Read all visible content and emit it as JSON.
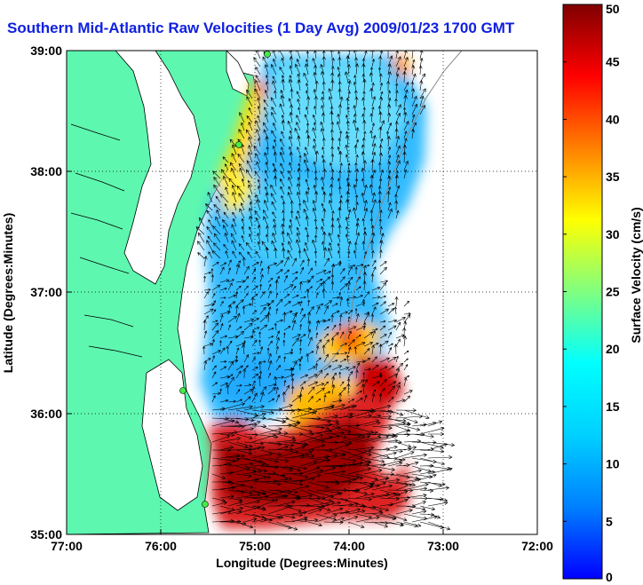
{
  "title": "Southern Mid-Atlantic Raw Velocities (1 Day Avg) 2009/01/23 1700 GMT",
  "chart_data": {
    "type": "heatmap",
    "title": "Southern Mid-Atlantic Raw Velocities (1 Day Avg) 2009/01/23 1700 GMT",
    "xlabel": "Longitude (Degrees:Minutes)",
    "ylabel": "Latitude (Degrees:Minutes)",
    "colorbar_label": "Surface Velocity (cm/s)",
    "x_ticks": [
      "77:00",
      "76:00",
      "75:00",
      "74:00",
      "73:00",
      "72:00"
    ],
    "y_ticks": [
      "39:00",
      "38:00",
      "37:00",
      "36:00",
      "35:00"
    ],
    "xlim": [
      -77,
      -72
    ],
    "ylim": [
      35,
      39
    ],
    "clim": [
      0,
      50
    ],
    "colorbar_ticks": [
      "0",
      "5",
      "10",
      "15",
      "20",
      "25",
      "30",
      "35",
      "40",
      "45",
      "50"
    ],
    "grid": true,
    "colors": {
      "land": "#5ef7b0",
      "coast": "#000000",
      "site_marker": "#44ee44"
    }
  }
}
